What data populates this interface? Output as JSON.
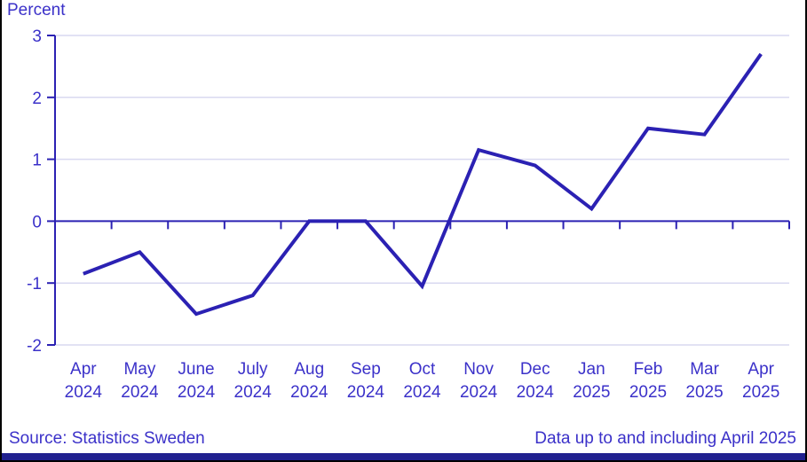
{
  "header": {
    "unit_label": "Percent"
  },
  "footer": {
    "source": "Source: Statistics Sweden",
    "coverage_note": "Data up to and including April 2025"
  },
  "colors": {
    "accent": "#2b21b3",
    "label_text": "#3b31c9",
    "grid": "#d9d9f0",
    "footer_bar": "#20208f",
    "frame_border": "#000000",
    "background": "#ffffff"
  },
  "chart_data": {
    "type": "line",
    "title": "",
    "ylabel": "Percent",
    "xlabel": "",
    "categories": [
      "Apr 2024",
      "May 2024",
      "June 2024",
      "July 2024",
      "Aug 2024",
      "Sep 2024",
      "Oct 2024",
      "Nov 2024",
      "Dec 2024",
      "Jan 2025",
      "Feb 2025",
      "Mar 2025",
      "Apr 2025"
    ],
    "values": [
      -0.85,
      -0.5,
      -1.5,
      -1.2,
      0.0,
      0.0,
      -1.05,
      1.15,
      0.9,
      0.2,
      1.5,
      1.4,
      2.7
    ],
    "ylim": [
      -2,
      3
    ],
    "y_ticks": [
      3,
      2,
      1,
      0,
      -1,
      -2
    ],
    "grid": "horizontal-light",
    "zero_line": true,
    "legend_position": "none",
    "series_name": "Percent"
  }
}
